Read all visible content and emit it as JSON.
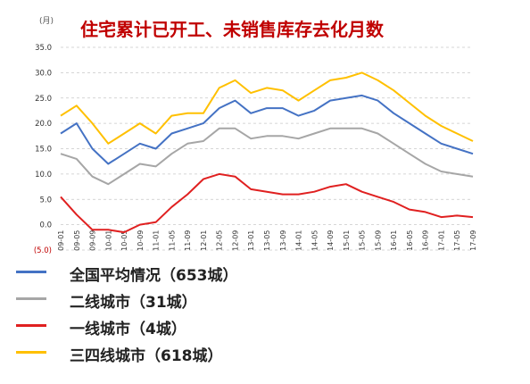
{
  "chart_data": {
    "type": "line",
    "title": "住宅累计已开工、未销售库存去化月数",
    "unit_label": "(月)",
    "ylim": [
      -5,
      35
    ],
    "yticks": [
      "35.0",
      "30.0",
      "25.0",
      "20.0",
      "15.0",
      "10.0",
      "5.0",
      "0.0",
      "(5.0)"
    ],
    "grid": true,
    "legend_position": "bottom-left",
    "x": [
      "09-01",
      "09-05",
      "09-09",
      "10-01",
      "10-05",
      "10-09",
      "11-01",
      "11-05",
      "11-09",
      "12-01",
      "12-05",
      "12-09",
      "13-01",
      "13-05",
      "13-09",
      "14-01",
      "14-05",
      "14-09",
      "15-01",
      "15-05",
      "15-09",
      "16-01",
      "16-05",
      "16-09",
      "17-01",
      "17-05",
      "17-09"
    ],
    "series": [
      {
        "name": "全国平均情况（653城）",
        "color": "#4472c4",
        "values": [
          18.0,
          20.0,
          15.0,
          12.0,
          14.0,
          16.0,
          15.0,
          18.0,
          19.0,
          20.0,
          23.0,
          24.5,
          22.0,
          23.0,
          23.0,
          21.5,
          22.5,
          24.5,
          25.0,
          25.5,
          24.5,
          22.0,
          20.0,
          18.0,
          16.0,
          15.0,
          14.0
        ]
      },
      {
        "name": "二线城市（31城）",
        "color": "#a6a6a6",
        "values": [
          14.0,
          13.0,
          9.5,
          8.0,
          10.0,
          12.0,
          11.5,
          14.0,
          16.0,
          16.5,
          19.0,
          19.0,
          17.0,
          17.5,
          17.5,
          17.0,
          18.0,
          19.0,
          19.0,
          19.0,
          18.0,
          16.0,
          14.0,
          12.0,
          10.5,
          10.0,
          9.5
        ]
      },
      {
        "name": "一线城市（4城）",
        "color": "#e02020",
        "values": [
          5.5,
          2.0,
          -1.0,
          -1.0,
          -1.5,
          0.0,
          0.5,
          3.5,
          6.0,
          9.0,
          10.0,
          9.5,
          7.0,
          6.5,
          6.0,
          6.0,
          6.5,
          7.5,
          8.0,
          6.5,
          5.5,
          4.5,
          3.0,
          2.5,
          1.5,
          1.8,
          1.5
        ]
      },
      {
        "name": "三四线城市（618城）",
        "color": "#ffc000",
        "values": [
          21.5,
          23.5,
          20.0,
          16.0,
          18.0,
          20.0,
          18.0,
          21.5,
          22.0,
          22.0,
          27.0,
          28.5,
          26.0,
          27.0,
          26.5,
          24.5,
          26.5,
          28.5,
          29.0,
          30.0,
          28.5,
          26.5,
          24.0,
          21.5,
          19.5,
          18.0,
          16.5
        ]
      }
    ]
  }
}
